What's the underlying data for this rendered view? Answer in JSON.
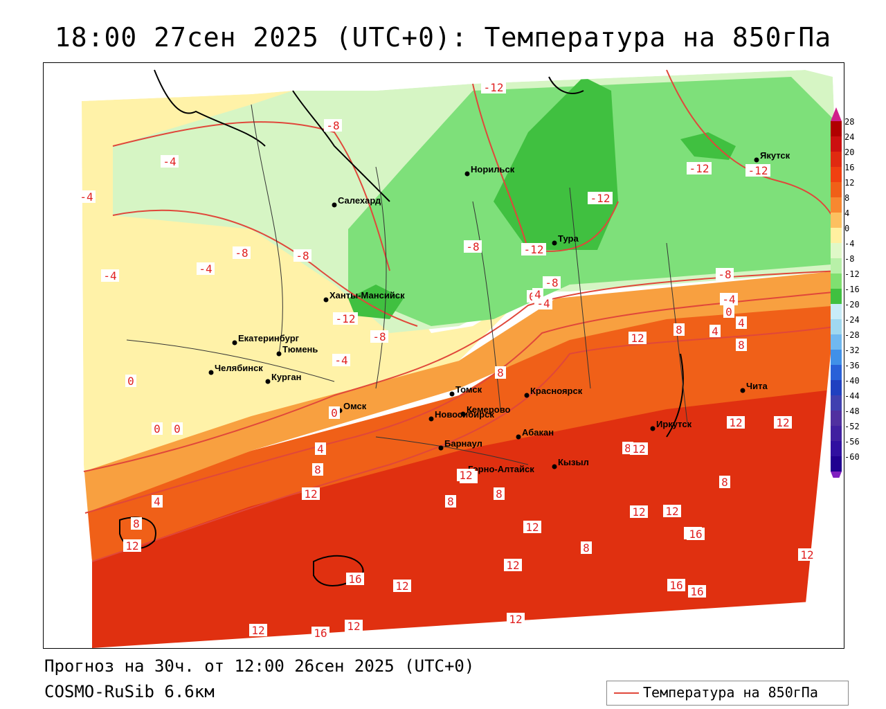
{
  "title": "18:00 27сен 2025 (UTC+0): Температура на 850гПа",
  "forecast_line": "Прогноз на 30ч. от 12:00 26сен 2025 (UTC+0)",
  "model_line": "COSMO-RuSib 6.6км",
  "legend_label": "Температура на 850гПа",
  "colorbar": {
    "labels": [
      "28",
      "24",
      "20",
      "16",
      "12",
      "8",
      "4",
      "0",
      "-4",
      "-8",
      "-12",
      "-16",
      "-20",
      "-24",
      "-28",
      "-32",
      "-36",
      "-40",
      "-44",
      "-48",
      "-52",
      "-56",
      "-60"
    ],
    "colors": [
      "#b00000",
      "#cc1010",
      "#e02a10",
      "#f04010",
      "#f06018",
      "#f88830",
      "#fcc060",
      "#fff0a0",
      "#e0f8c8",
      "#b8f0a8",
      "#80e070",
      "#40c040",
      "#c8ecf8",
      "#a0d8f0",
      "#70b8f0",
      "#4090e8",
      "#2860d8",
      "#2040c0",
      "#4040b0",
      "#5030a0",
      "#4020a0",
      "#3010a0",
      "#200090"
    ],
    "top_arrow_color": "#d0208a",
    "bottom_arrow_color": "#8020c0"
  },
  "cities": [
    {
      "name": "Норильск"
    },
    {
      "name": "Салехард"
    },
    {
      "name": "Тура"
    },
    {
      "name": "Якутск"
    },
    {
      "name": "Ханты-Мансийск"
    },
    {
      "name": "Екатеринбург"
    },
    {
      "name": "Тюмень"
    },
    {
      "name": "Челябинск"
    },
    {
      "name": "Курган"
    },
    {
      "name": "Омск"
    },
    {
      "name": "Новосибирск"
    },
    {
      "name": "Томск"
    },
    {
      "name": "Красноярск"
    },
    {
      "name": "Кемерово"
    },
    {
      "name": "Абакан"
    },
    {
      "name": "Барнаул"
    },
    {
      "name": "Горно-Алтайск"
    },
    {
      "name": "Кызыл"
    },
    {
      "name": "Иркутск"
    },
    {
      "name": "Чита"
    }
  ],
  "isolines": [
    "-12",
    "-8",
    "-4",
    "-4",
    "-4",
    "-4",
    "-8",
    "-8",
    "-8",
    "-12",
    "-8",
    "-4",
    "0",
    "0",
    "0",
    "-12",
    "-12",
    "-12",
    "-12",
    "-8",
    "-4",
    "0",
    "4",
    "8",
    "4",
    "0",
    "-8",
    "-4",
    "0",
    "4",
    "8",
    "8",
    "12",
    "8",
    "4",
    "12",
    "12",
    "16",
    "12",
    "12",
    "16",
    "12",
    "12",
    "12",
    "12",
    "12",
    "16",
    "8",
    "8",
    "8",
    "8",
    "12",
    "12",
    "12",
    "16",
    "12",
    "12",
    "8",
    "4",
    "12",
    "8",
    "12",
    "12",
    "16"
  ],
  "colors": {
    "isoline": "#e0473a",
    "warm_deep": "#e03010",
    "warm": "#f06018",
    "mild": "#f8a040",
    "neutral": "#fff2a8",
    "cool": "#d6f5c4",
    "cold": "#7ee07a",
    "very_cold": "#40c040"
  }
}
